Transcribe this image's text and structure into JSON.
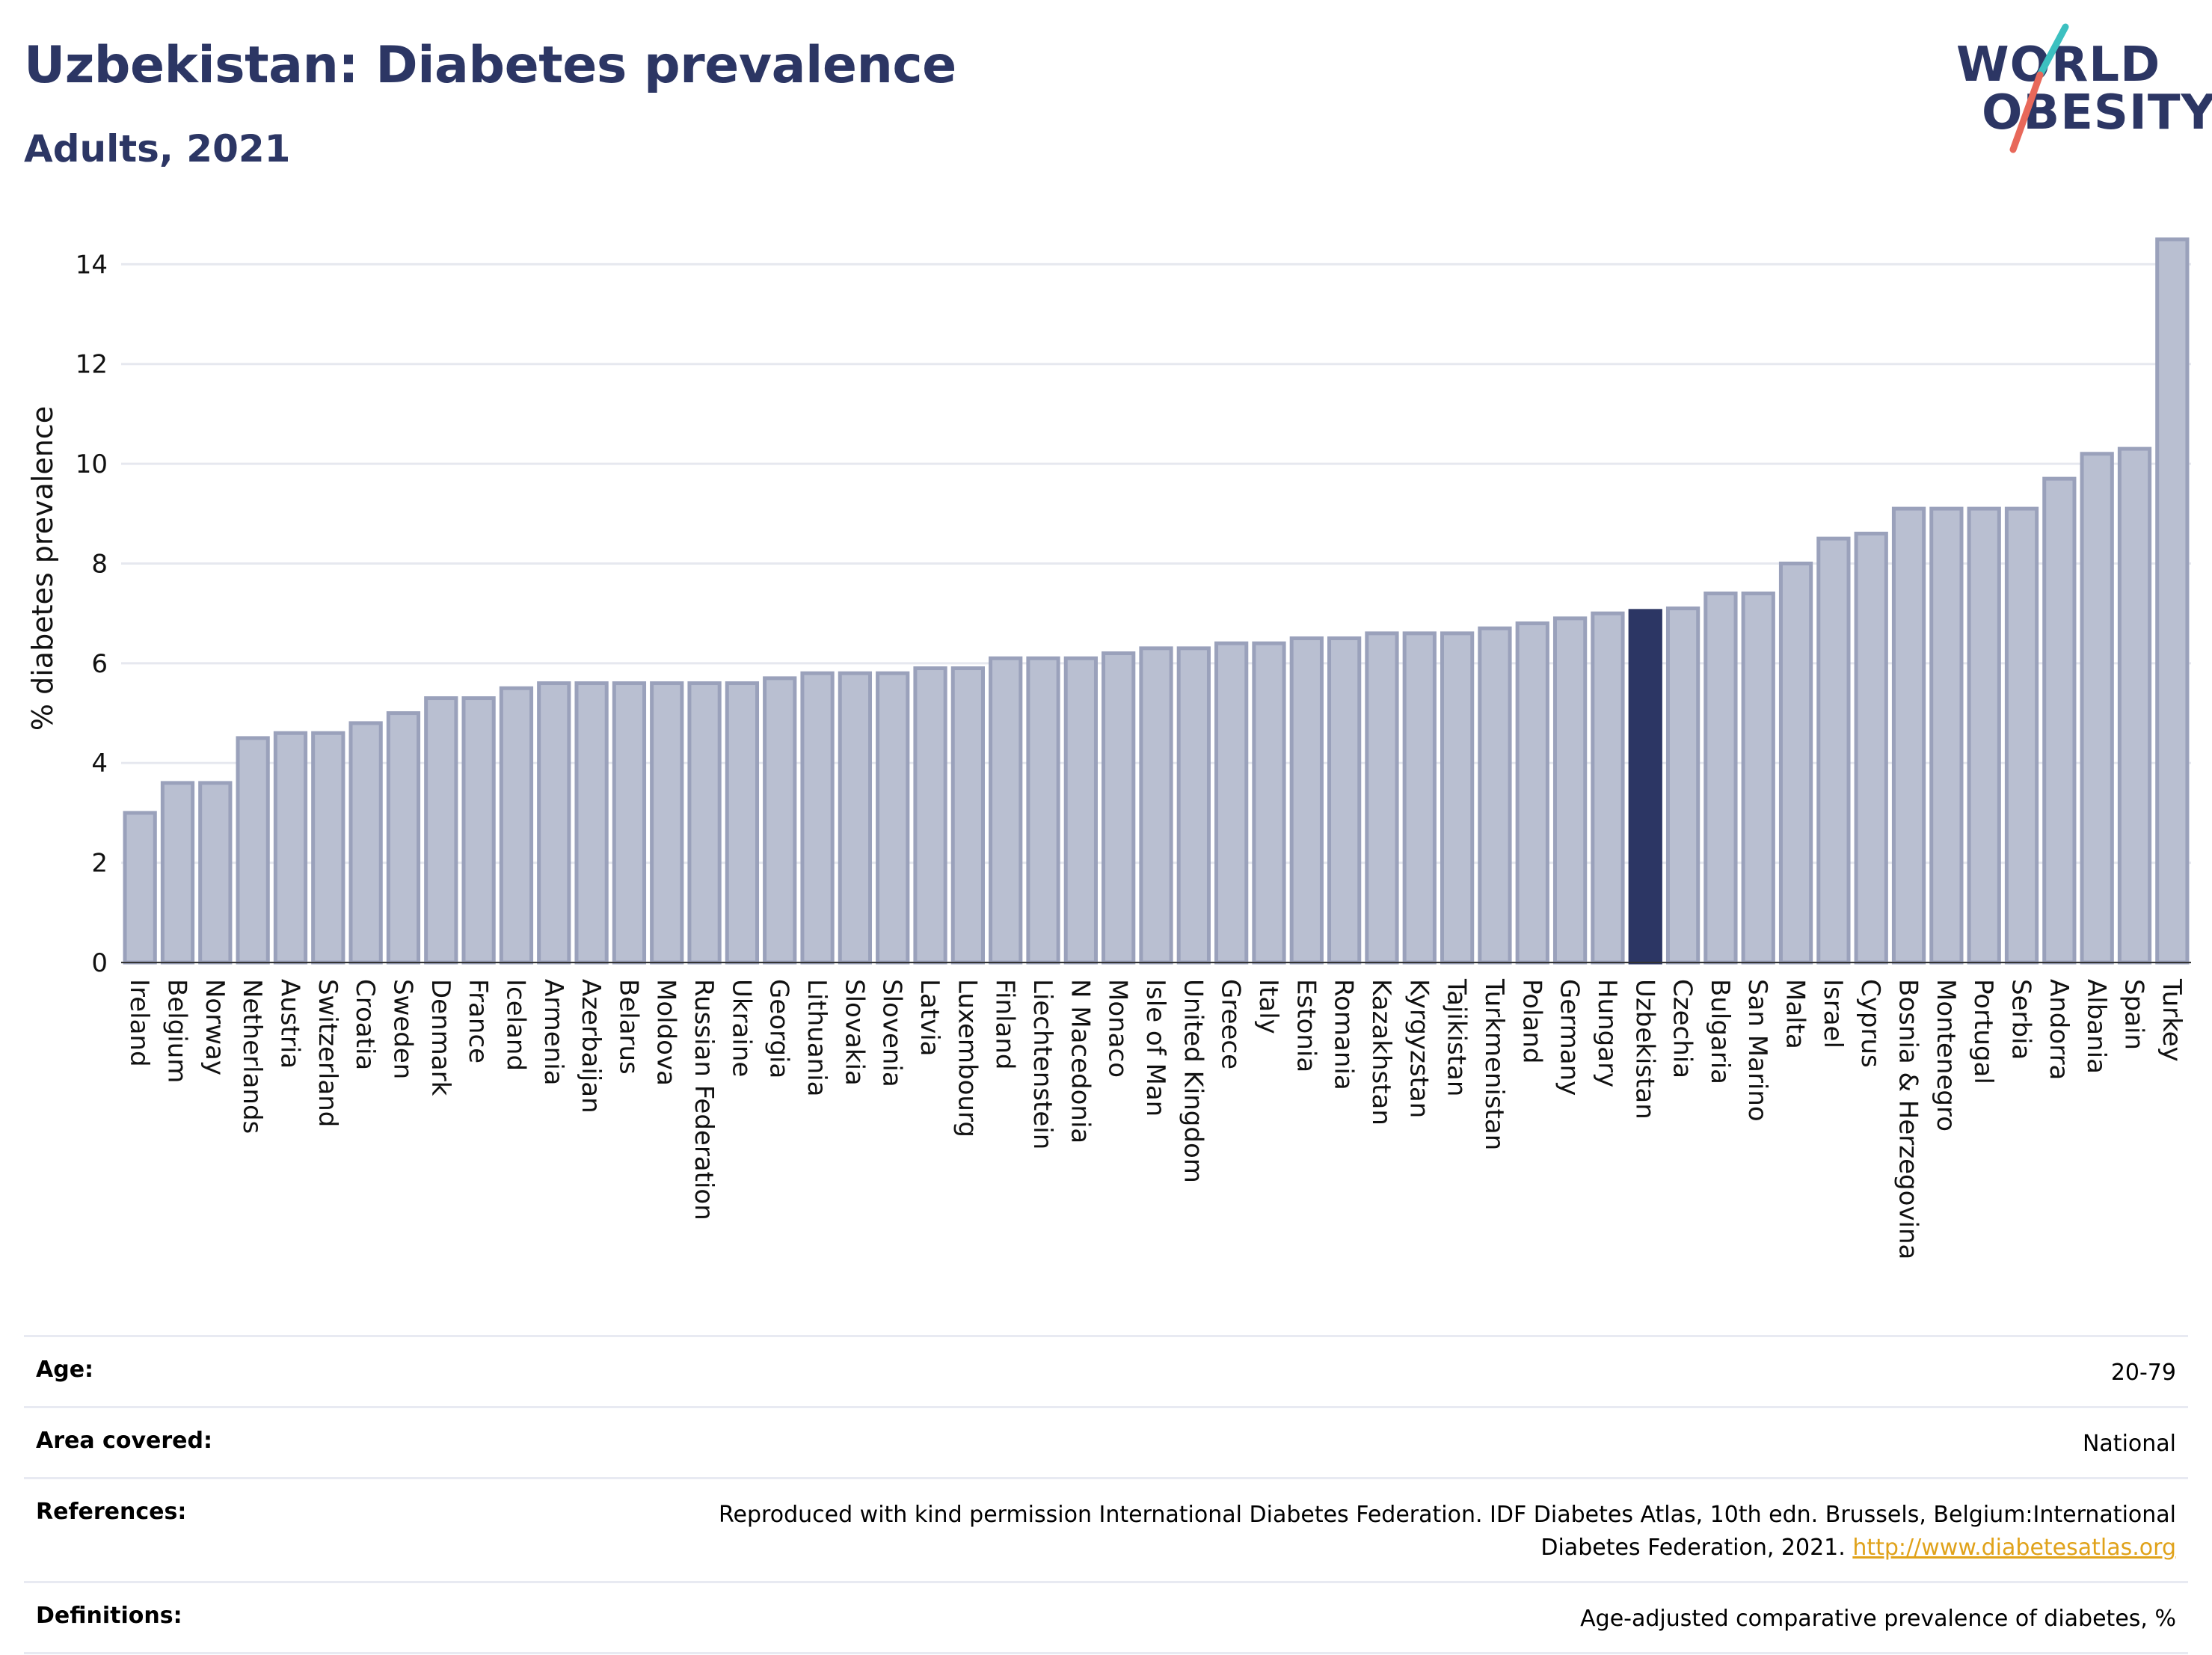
{
  "header": {
    "title": "Uzbekistan: Diabetes prevalence",
    "subtitle": "Adults, 2021"
  },
  "logo": {
    "line1": "WORLD",
    "line2": "OBESITY",
    "accent_teal": "#3cc0c0",
    "accent_red": "#e8685a",
    "text_color": "#2c3664"
  },
  "chart_data": {
    "type": "bar",
    "ylabel": "% diabetes prevalence",
    "ylim": [
      0,
      14.8
    ],
    "yticks": [
      0,
      2,
      4,
      6,
      8,
      10,
      12,
      14
    ],
    "grid": true,
    "highlight": "Uzbekistan",
    "colors": {
      "bar": "#b9bfd1",
      "bar_stroke": "#9aa1bb",
      "highlight": "#2c3664"
    },
    "categories": [
      "Ireland",
      "Belgium",
      "Norway",
      "Netherlands",
      "Austria",
      "Switzerland",
      "Croatia",
      "Sweden",
      "Denmark",
      "France",
      "Iceland",
      "Armenia",
      "Azerbaijan",
      "Belarus",
      "Moldova",
      "Russian Federation",
      "Ukraine",
      "Georgia",
      "Lithuania",
      "Slovakia",
      "Slovenia",
      "Latvia",
      "Luxembourg",
      "Finland",
      "Liechtenstein",
      "N Macedonia",
      "Monaco",
      "Isle of Man",
      "United Kingdom",
      "Greece",
      "Italy",
      "Estonia",
      "Romania",
      "Kazakhstan",
      "Kyrgyzstan",
      "Tajikistan",
      "Turkmenistan",
      "Poland",
      "Germany",
      "Hungary",
      "Uzbekistan",
      "Czechia",
      "Bulgaria",
      "San Marino",
      "Malta",
      "Israel",
      "Cyprus",
      "Bosnia & Herzegovina",
      "Montenegro",
      "Portugal",
      "Serbia",
      "Andorra",
      "Albania",
      "Spain",
      "Turkey"
    ],
    "values": [
      3.0,
      3.6,
      3.6,
      4.5,
      4.6,
      4.6,
      4.8,
      5.0,
      5.3,
      5.3,
      5.5,
      5.6,
      5.6,
      5.6,
      5.6,
      5.6,
      5.6,
      5.7,
      5.8,
      5.8,
      5.8,
      5.9,
      5.9,
      6.1,
      6.1,
      6.1,
      6.2,
      6.3,
      6.3,
      6.4,
      6.4,
      6.5,
      6.5,
      6.6,
      6.6,
      6.6,
      6.7,
      6.8,
      6.9,
      7.0,
      7.05,
      7.1,
      7.4,
      7.4,
      8.0,
      8.5,
      8.6,
      9.1,
      9.1,
      9.1,
      9.1,
      9.7,
      10.2,
      10.3,
      14.5
    ]
  },
  "info": {
    "rows": [
      {
        "label": "Age:",
        "value": "20-79"
      },
      {
        "label": "Area covered:",
        "value": "National"
      },
      {
        "label": "References:",
        "value": "Reproduced with kind permission International Diabetes Federation.  IDF Diabetes Atlas, 10th edn. Brussels, Belgium:International Diabetes Federation, 2021.",
        "link": "http://www.diabetesatlas.org"
      },
      {
        "label": "Definitions:",
        "value": "Age-adjusted comparative prevalence of diabetes, %"
      }
    ]
  }
}
